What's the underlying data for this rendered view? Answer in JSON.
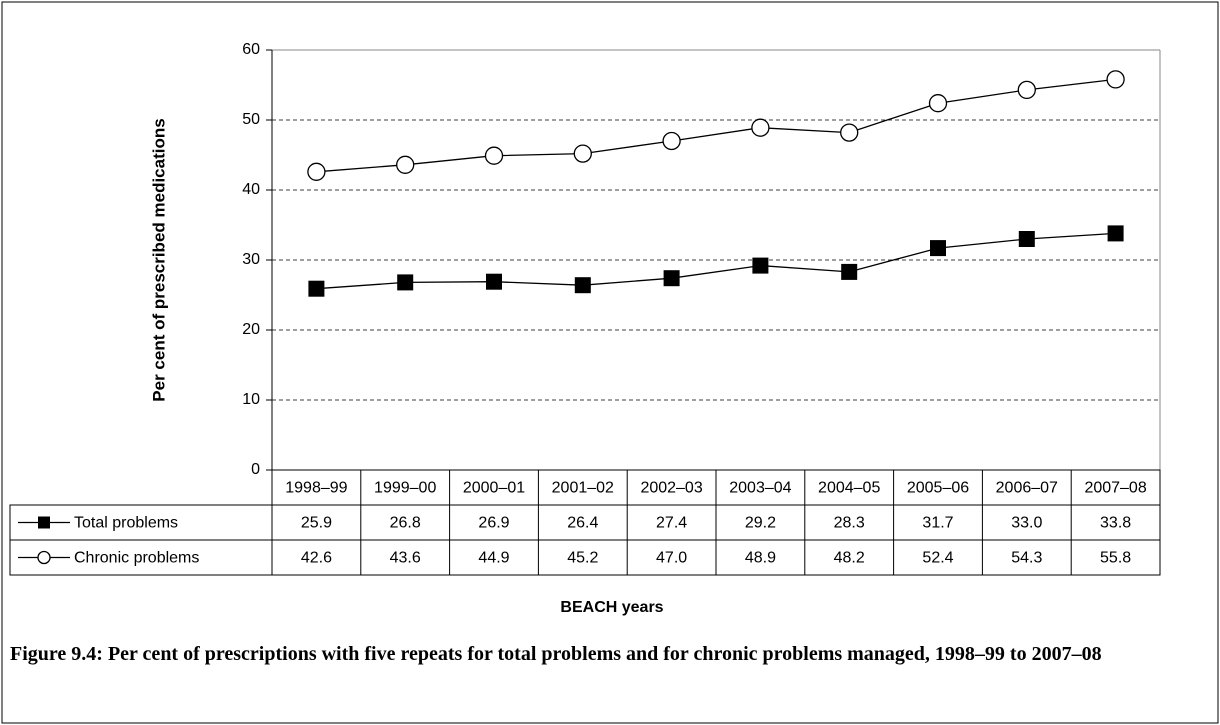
{
  "chart_data": {
    "type": "line",
    "y_label": "Per cent of prescribed medications",
    "x_label": "BEACH years",
    "caption": "Figure 9.4: Per cent of prescriptions with five repeats for total problems and for chronic problems managed, 1998–99 to 2007–08",
    "categories": [
      "1998–99",
      "1999–00",
      "2000–01",
      "2001–02",
      "2002–03",
      "2003–04",
      "2004–05",
      "2005–06",
      "2006–07",
      "2007–08"
    ],
    "series": [
      {
        "name": "Total problems",
        "color": "#000000",
        "marker": "square",
        "values": [
          25.9,
          26.8,
          26.9,
          26.4,
          27.4,
          29.2,
          28.3,
          31.7,
          33.0,
          33.8
        ],
        "value_labels": [
          "25.9",
          "26.8",
          "26.9",
          "26.4",
          "27.4",
          "29.2",
          "28.3",
          "31.7",
          "33.0",
          "33.8"
        ]
      },
      {
        "name": "Chronic problems",
        "color": "#000000",
        "marker": "circle",
        "values": [
          42.6,
          43.6,
          44.9,
          45.2,
          47.0,
          48.9,
          48.2,
          52.4,
          54.3,
          55.8
        ],
        "value_labels": [
          "42.6",
          "43.6",
          "44.9",
          "45.2",
          "47.0",
          "48.9",
          "48.2",
          "52.4",
          "54.3",
          "55.8"
        ]
      }
    ],
    "ylim": [
      0,
      60
    ],
    "yticks": [
      0,
      10,
      20,
      30,
      40,
      50,
      60
    ],
    "grid": true
  }
}
